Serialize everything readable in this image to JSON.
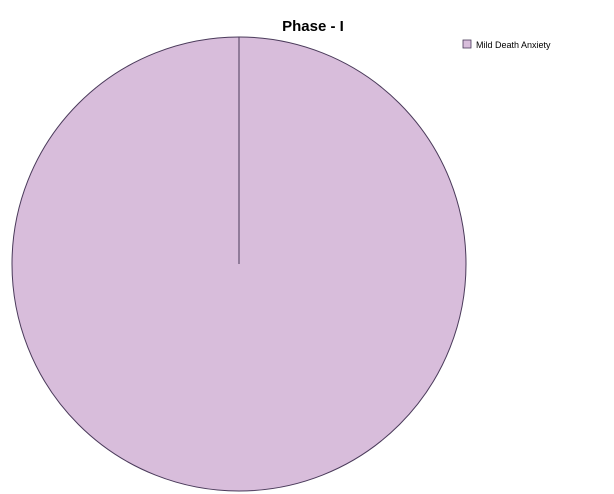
{
  "chart_data": {
    "type": "pie",
    "title": "Phase - I",
    "categories": [
      "Mild Death Anxiety"
    ],
    "values": [
      100
    ],
    "colors": [
      "#d8bddb"
    ],
    "slice_border_color": "#4a3a5a",
    "legend": {
      "placement": "top-right",
      "entries": [
        "Mild Death Anxiety"
      ]
    }
  }
}
